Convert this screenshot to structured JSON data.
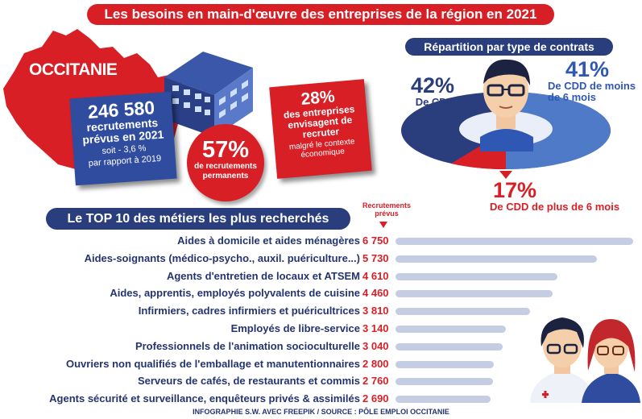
{
  "header": {
    "title": "Les besoins en main-d'œuvre des entreprises de la région en 2021",
    "region": "OCCITANIE"
  },
  "stats": {
    "recruitments": {
      "value": "246 580",
      "label": "recrutements prévus en 2021",
      "change": "soit - 3,6 %",
      "comparison": "par rapport à 2019"
    },
    "permanent": {
      "value": "57%",
      "label": "de recrutements permanents"
    },
    "companies": {
      "value": "28%",
      "label": "des entreprises envisagent de recruter",
      "note": "malgré le contexte économique"
    }
  },
  "contracts": {
    "title": "Répartition par type de contrats",
    "cdi": {
      "value": "42%",
      "label": "De CDI"
    },
    "cdd_short": {
      "value": "41%",
      "label": "De CDD de moins de 6 mois"
    },
    "cdd_long": {
      "value": "17%",
      "label": "De CDD de plus de 6 mois"
    }
  },
  "top10": {
    "title": "Le TOP 10 des métiers les plus recherchés",
    "column_header": "Recrutements prévus"
  },
  "chart_data": [
    {
      "type": "pie",
      "title": "Répartition par type de contrats",
      "categories": [
        "De CDI",
        "De CDD de moins de 6 mois",
        "De CDD de plus de 6 mois"
      ],
      "values": [
        42,
        41,
        17
      ],
      "colors": [
        "#2a3d7c",
        "#4e7ac8",
        "#d81f26"
      ]
    },
    {
      "type": "bar",
      "title": "Le TOP 10 des métiers les plus recherchés",
      "value_label": "Recrutements prévus",
      "categories": [
        "Aides à domicile et aides ménagères",
        "Aides-soignants (médico-psycho., auxil. puériculture...)",
        "Agents d'entretien de locaux et ATSEM",
        "Aides, apprentis, employés polyvalents de cuisine",
        "Infirmiers, cadres infirmiers et puéricultrices",
        "Employés de libre-service",
        "Professionnels de l'animation socioculturelle",
        "Ouvriers non qualifiés de l'emballage et manutentionnaires",
        "Serveurs de cafés, de restaurants et commis",
        "Agents sécurité et surveillance, enquêteurs privés & assimilés"
      ],
      "values": [
        6750,
        5730,
        4610,
        4460,
        3810,
        3140,
        3040,
        2800,
        2760,
        2690
      ],
      "value_labels": [
        "6 750",
        "5 730",
        "4 610",
        "4 460",
        "3 810",
        "3 140",
        "3 040",
        "2 800",
        "2 760",
        "2 690"
      ],
      "xlim": [
        0,
        6750
      ],
      "bar_color": "#c5cde3",
      "value_color": "#d81f26"
    }
  ],
  "footer": {
    "credits": "INFOGRAPHIE S.W. AVEC FREEPIK / SOURCE : PÔLE EMPLOI OCCITANIE"
  },
  "colors": {
    "red": "#d81f26",
    "navy": "#2a3d7c",
    "blue": "#2f4c9e"
  }
}
